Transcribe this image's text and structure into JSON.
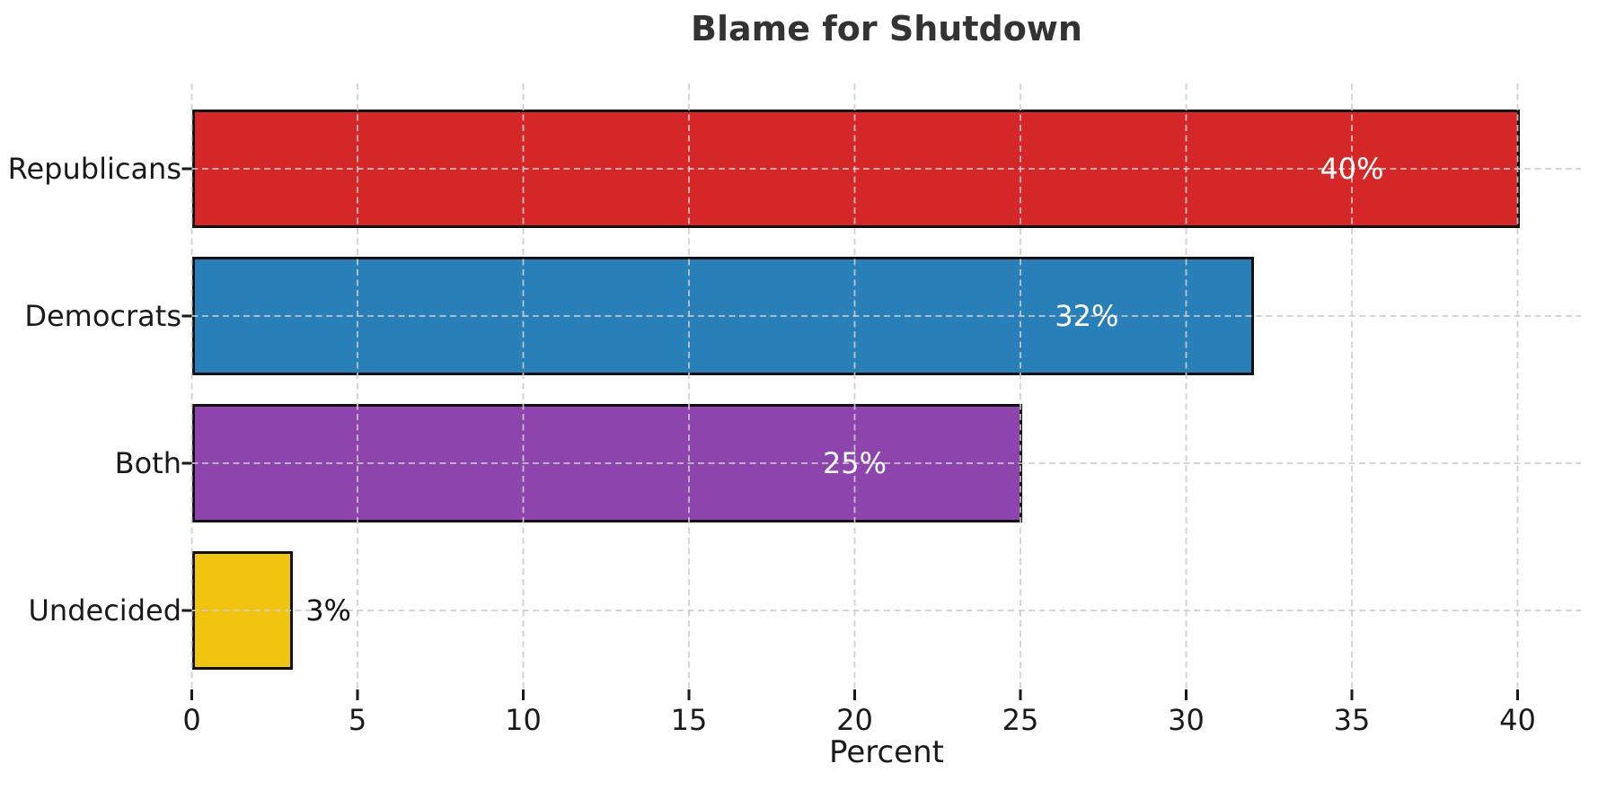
{
  "chart_data": {
    "type": "bar",
    "orientation": "horizontal",
    "title": "Blame for Shutdown",
    "categories": [
      "Republicans",
      "Democrats",
      "Both",
      "Undecided"
    ],
    "values": [
      40,
      32,
      25,
      3
    ],
    "value_labels": [
      "40%",
      "32%",
      "25%",
      "3%"
    ],
    "bar_colors": [
      "#d62728",
      "#2980b9",
      "#8e44ad",
      "#f1c40f"
    ],
    "bar_edge_color": "#101010",
    "xlabel": "Percent",
    "x_ticks": [
      0,
      5,
      10,
      15,
      20,
      25,
      30,
      35,
      40
    ],
    "xlim": [
      0,
      41.9
    ],
    "grid": true,
    "grid_style": "dashed",
    "grid_color": "#cccccc",
    "legend": null,
    "background": "#ffffff",
    "text_color": "#1a1a1a",
    "title_color": "#333333",
    "value_label_inside_color": "#ffffff",
    "value_label_outside_color": "#111111"
  }
}
